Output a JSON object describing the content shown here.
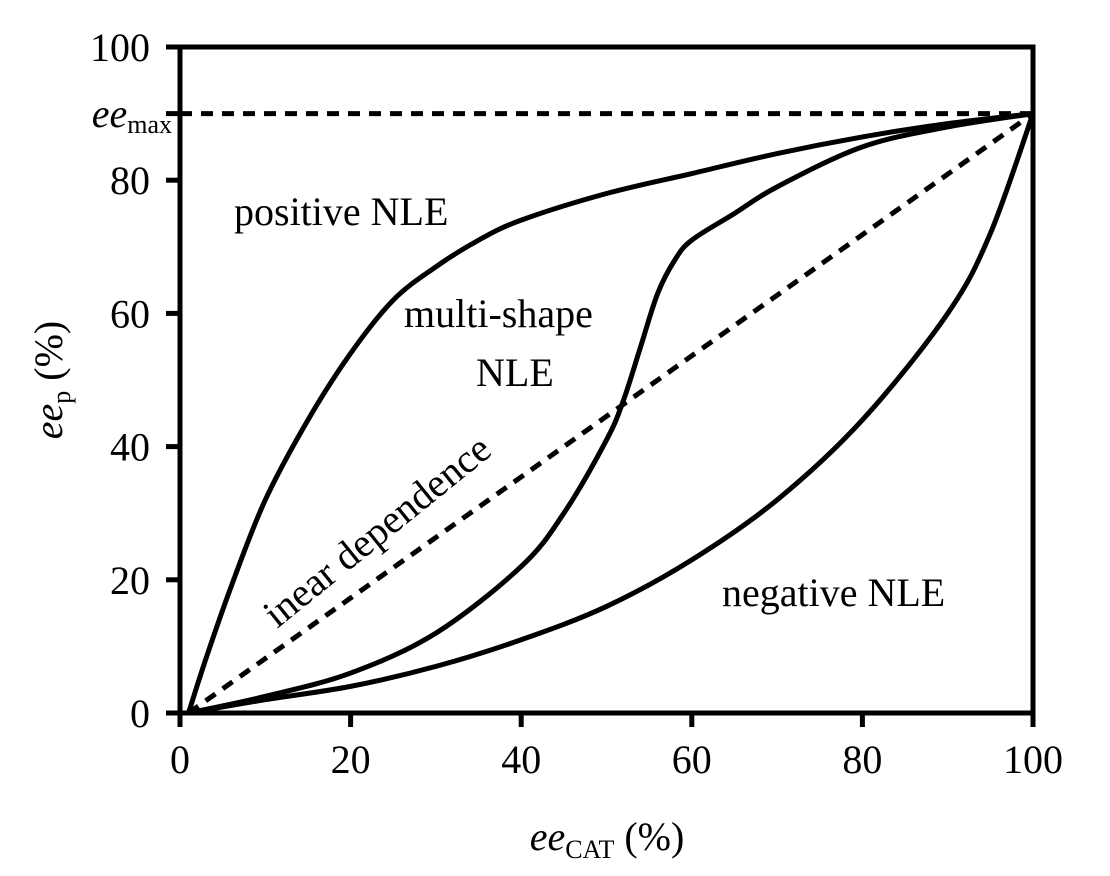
{
  "chart_data": {
    "type": "line",
    "xlabel": {
      "main": "ee",
      "sub": "CAT",
      "suffix": " (%)"
    },
    "ylabel": {
      "main": "ee",
      "sub": "p",
      "suffix": " (%)"
    },
    "xlim": [
      0,
      100
    ],
    "ylim": [
      0,
      100
    ],
    "xticks": [
      0,
      20,
      40,
      60,
      80,
      100
    ],
    "yticks": [
      0,
      20,
      40,
      60,
      80,
      100
    ],
    "ee_max": 90,
    "ee_max_label": {
      "main": "ee",
      "sub": "max"
    },
    "series": [
      {
        "name": "positive NLE",
        "style": "solid",
        "x": [
          1,
          3,
          6,
          10,
          15,
          20,
          25,
          30,
          35,
          40,
          50,
          60,
          70,
          80,
          90,
          100
        ],
        "y": [
          0,
          8,
          19,
          32,
          44,
          54,
          62,
          67,
          71,
          74,
          78,
          81,
          84,
          86.5,
          88.5,
          90
        ]
      },
      {
        "name": "multi-shape NLE",
        "style": "solid",
        "x": [
          1,
          10,
          20,
          30,
          40,
          45,
          50,
          52,
          54,
          56,
          58,
          60,
          65,
          70,
          80,
          90,
          100
        ],
        "y": [
          0,
          2.5,
          6,
          12,
          22,
          30,
          41,
          47,
          55,
          63,
          68,
          71,
          75,
          79,
          85,
          88,
          90
        ]
      },
      {
        "name": "linear dependence",
        "style": "dashed",
        "x": [
          1,
          100
        ],
        "y": [
          0,
          90
        ]
      },
      {
        "name": "negative NLE",
        "style": "solid",
        "x": [
          1,
          10,
          20,
          30,
          40,
          50,
          60,
          70,
          80,
          90,
          95,
          100
        ],
        "y": [
          0,
          2,
          4,
          7,
          11,
          16,
          23,
          32,
          44,
          60,
          72,
          90
        ]
      }
    ],
    "annotations": {
      "positive": "positive NLE",
      "multi_line1": "multi-shape",
      "multi_line2": "NLE",
      "linear": "inear dependence",
      "negative": "negative NLE"
    }
  }
}
